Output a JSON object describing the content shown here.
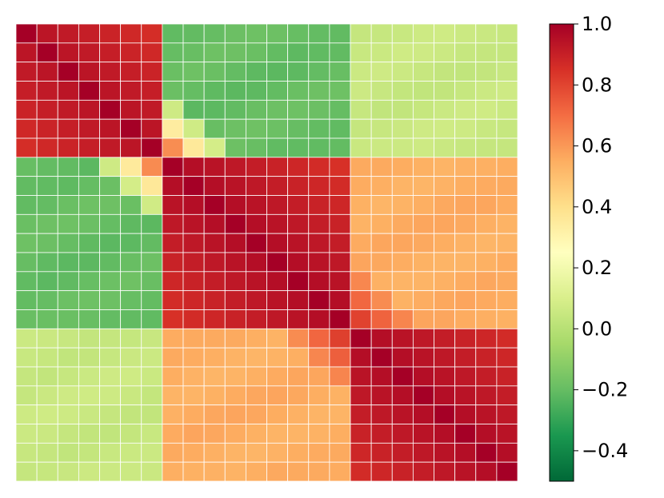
{
  "chart_data": {
    "type": "heatmap",
    "rows": 24,
    "cols": 24,
    "colormap": "RdYlGn_r",
    "vmin": -0.5,
    "vmax": 1.0,
    "grid_lines": true,
    "grid_color": "#ffffff",
    "colorbar": {
      "placement": "right",
      "ticks": [
        1.0,
        0.8,
        0.6,
        0.4,
        0.2,
        0.0,
        -0.2,
        -0.4
      ],
      "tick_labels": [
        "1.0",
        "0.8",
        "0.6",
        "0.4",
        "0.2",
        "0.0",
        "−0.2",
        "−0.4"
      ]
    },
    "blocks": [
      {
        "start": 0,
        "end": 6,
        "level": 0.95
      },
      {
        "start": 7,
        "end": 15,
        "level": 0.97
      },
      {
        "start": 16,
        "end": 23,
        "level": 0.97
      }
    ],
    "cross_block": [
      {
        "a": 0,
        "b": 1,
        "value": -0.2
      },
      {
        "a": 0,
        "b": 2,
        "value": 0.05
      },
      {
        "a": 1,
        "b": 2,
        "value": 0.55
      }
    ]
  }
}
